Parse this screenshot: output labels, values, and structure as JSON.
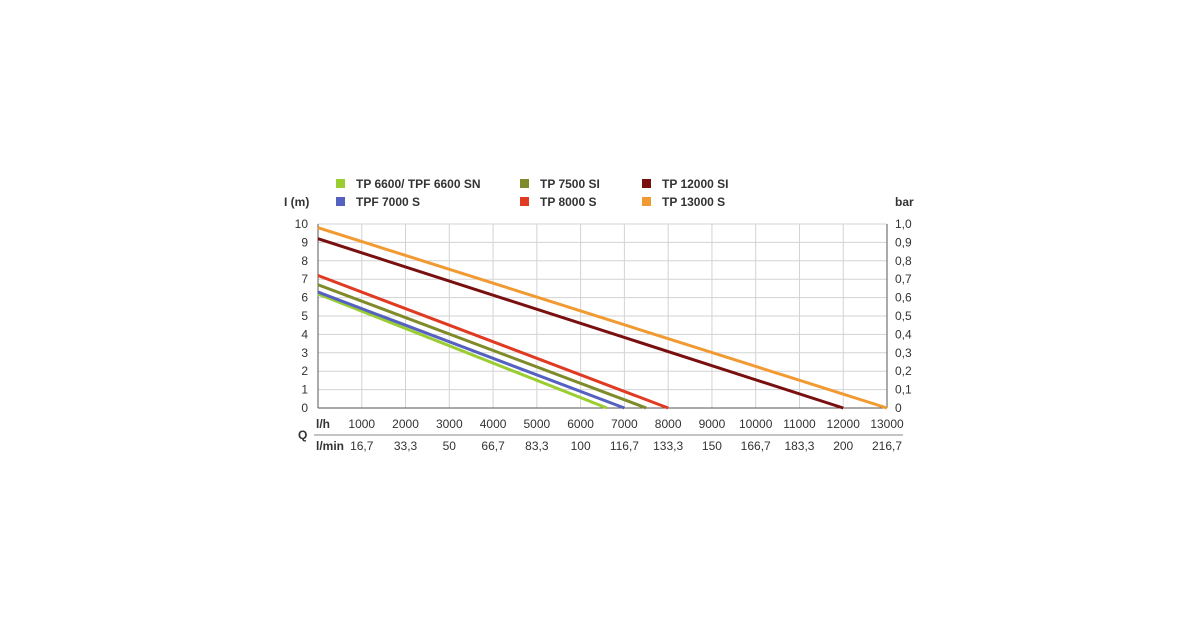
{
  "chart_data": {
    "type": "line",
    "x": [
      0,
      1000,
      2000,
      3000,
      4000,
      5000,
      6000,
      7000,
      8000,
      9000,
      10000,
      11000,
      12000,
      13000
    ],
    "xlim": [
      0,
      13000
    ],
    "ylim": [
      0,
      10
    ],
    "ylim_right": [
      0,
      1.0
    ],
    "y_left_label": "I (m)",
    "y_right_label": "bar",
    "y_ticks": [
      "0",
      "1",
      "2",
      "3",
      "4",
      "5",
      "6",
      "7",
      "8",
      "9",
      "10"
    ],
    "y_right_ticks": [
      "0",
      "0,1",
      "0,2",
      "0,3",
      "0,4",
      "0,5",
      "0,6",
      "0,7",
      "0,8",
      "0,9",
      "1,0"
    ],
    "x_unit_lh": "l/h",
    "x_ticks_lh": [
      "1000",
      "2000",
      "3000",
      "4000",
      "5000",
      "6000",
      "7000",
      "8000",
      "9000",
      "10000",
      "11000",
      "12000",
      "13000"
    ],
    "x_unit_lmin": "l/min",
    "x_ticks_lmin": [
      "16,7",
      "33,3",
      "50",
      "66,7",
      "83,3",
      "100",
      "116,7",
      "133,3",
      "150",
      "166,7",
      "183,3",
      "200",
      "216,7"
    ],
    "x_axis_symbol": "Q",
    "grid": true,
    "legend_position": "top",
    "series": [
      {
        "name": "TP 6600/ TPF 6600 SN",
        "color": "#9acd32",
        "points": [
          [
            0,
            6.2
          ],
          [
            6600,
            0
          ]
        ]
      },
      {
        "name": "TP 7500 SI",
        "color": "#7f8a2a",
        "points": [
          [
            0,
            6.7
          ],
          [
            7500,
            0
          ]
        ]
      },
      {
        "name": "TP 12000 SI",
        "color": "#7a0f10",
        "points": [
          [
            0,
            9.2
          ],
          [
            12000,
            0
          ]
        ]
      },
      {
        "name": "TPF 7000 S",
        "color": "#5561c0",
        "points": [
          [
            0,
            6.3
          ],
          [
            7000,
            0
          ]
        ]
      },
      {
        "name": "TP 8000 S",
        "color": "#e03a22",
        "points": [
          [
            0,
            7.2
          ],
          [
            8000,
            0
          ]
        ]
      },
      {
        "name": "TP 13000 S",
        "color": "#f29a32",
        "points": [
          [
            0,
            9.8
          ],
          [
            13000,
            0
          ]
        ]
      }
    ]
  }
}
